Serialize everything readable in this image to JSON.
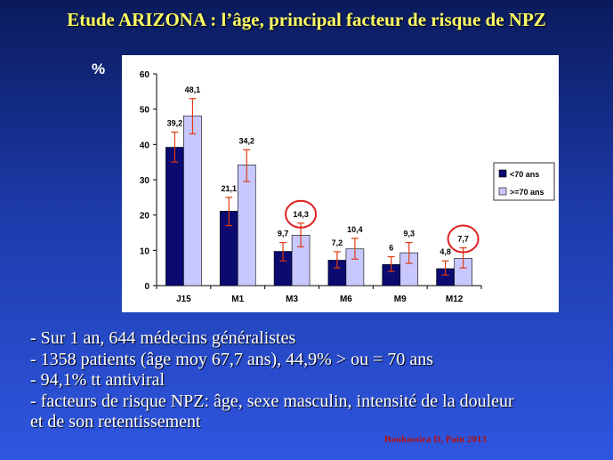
{
  "slide": {
    "title": "Etude ARIZONA : l’âge, principal facteur de risque de NPZ",
    "unit": "%",
    "bullets": [
      "- Sur 1 an, 644 médecins généralistes",
      "- 1358 patients (âge moy 67,7 ans), 44,9% > ou = 70 ans",
      "- 94,1% tt antiviral",
      "- facteurs de risque NPZ: âge, sexe masculin, intensité de la douleur",
      "et de son retentissement"
    ],
    "citation": "Bouhassira D, Pain 2013"
  },
  "colors": {
    "series_under_70": "#0a0a70",
    "series_over_70": "#c8c8ff",
    "error_bars": "#e03a10",
    "highlight_circle": "#e02020"
  },
  "chart_data": {
    "type": "bar",
    "categories": [
      "J15",
      "M1",
      "M3",
      "M6",
      "M9",
      "M12"
    ],
    "series": [
      {
        "name": "<70 ans",
        "values": [
          39.2,
          21.1,
          9.7,
          7.2,
          6,
          4.8
        ],
        "labels": [
          "39,2",
          "21,1",
          "9,7",
          "7,2",
          "6",
          "4,8"
        ],
        "error_low": [
          35,
          17,
          7,
          5,
          4,
          3
        ],
        "error_high": [
          43.5,
          25,
          12.2,
          9.6,
          8.2,
          7
        ]
      },
      {
        "name": ">=70 ans",
        "values": [
          48.1,
          34.2,
          14.3,
          10.4,
          9.3,
          7.7
        ],
        "labels": [
          "48,1",
          "34,2",
          "14,3",
          "10,4",
          "9,3",
          "7,7"
        ],
        "error_low": [
          43,
          29.5,
          11,
          7.5,
          6.3,
          5
        ],
        "error_high": [
          53,
          38.5,
          17.7,
          13.4,
          12.2,
          10.7
        ]
      }
    ],
    "highlighted": [
      {
        "series": 1,
        "category": 2
      },
      {
        "series": 1,
        "category": 5
      }
    ],
    "ylim": [
      0,
      60
    ],
    "yticks": [
      0,
      10,
      20,
      30,
      40,
      50,
      60
    ],
    "grid": false,
    "legend": "right",
    "xlabel": "",
    "ylabel": ""
  }
}
